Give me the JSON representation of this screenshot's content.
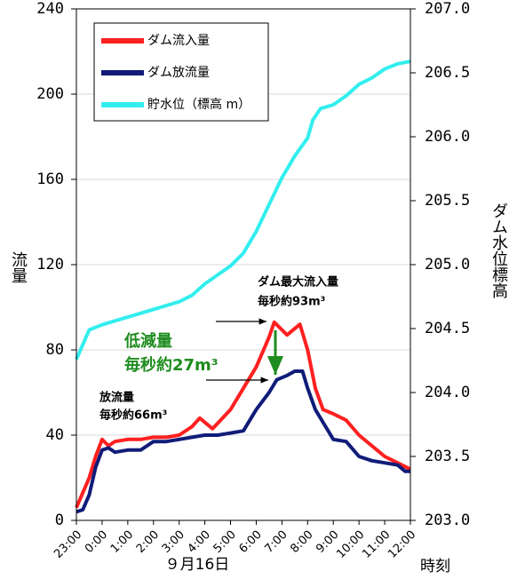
{
  "chart_data": {
    "type": "line",
    "xlim": [
      0,
      13
    ],
    "xticks": [
      {
        "value": 0,
        "label": "23:00"
      },
      {
        "value": 1,
        "label": "0:00"
      },
      {
        "value": 2,
        "label": "1:00"
      },
      {
        "value": 3,
        "label": "2:00"
      },
      {
        "value": 4,
        "label": "3:00"
      },
      {
        "value": 5,
        "label": "4:00"
      },
      {
        "value": 6,
        "label": "5:00"
      },
      {
        "value": 7,
        "label": "6:00"
      },
      {
        "value": 8,
        "label": "7:00"
      },
      {
        "value": 9,
        "label": "8:00"
      },
      {
        "value": 10,
        "label": "9:00"
      },
      {
        "value": 11,
        "label": "10:00"
      },
      {
        "value": 12,
        "label": "11:00"
      },
      {
        "value": 13,
        "label": "12:00"
      }
    ],
    "ylim": [
      0,
      240
    ],
    "yticks": [
      0,
      40,
      80,
      120,
      160,
      200,
      240
    ],
    "y2lim": [
      203,
      207
    ],
    "y2ticks": [
      {
        "value": 203,
        "label": "203.0"
      },
      {
        "value": 203.5,
        "label": "203.5"
      },
      {
        "value": 204,
        "label": "204.0"
      },
      {
        "value": 204.5,
        "label": "204.5"
      },
      {
        "value": 205,
        "label": "205.0"
      },
      {
        "value": 205.5,
        "label": "205.5"
      },
      {
        "value": 206,
        "label": "206.0"
      },
      {
        "value": 206.5,
        "label": "206.5"
      },
      {
        "value": 207,
        "label": "207.0"
      }
    ],
    "ylabel": "流量",
    "y2label": "ダム水位標高",
    "xlabel": "９月16日",
    "xlabel2": "時刻",
    "grid": true,
    "legend": "upper left",
    "series": [
      {
        "name": "ダム流入量",
        "color": "#ff2020",
        "x": [
          0,
          0.25,
          0.5,
          0.75,
          1,
          1.25,
          1.5,
          2,
          2.5,
          3,
          3.5,
          4,
          4.5,
          4.8,
          5.3,
          6,
          6.5,
          7,
          7.5,
          7.7,
          8.2,
          8.7,
          9,
          9.3,
          9.6,
          10,
          10.5,
          11,
          11.5,
          12,
          12.5,
          13
        ],
        "values": [
          6,
          13,
          20,
          30,
          38,
          35,
          37,
          38,
          38,
          39,
          39,
          40,
          44,
          48,
          43,
          52,
          62,
          72,
          86,
          93,
          87,
          92,
          80,
          62,
          52,
          50,
          47,
          40,
          35,
          30,
          27,
          24
        ]
      },
      {
        "name": "ダム放流量",
        "color": "#101c78",
        "x": [
          0,
          0.25,
          0.5,
          0.75,
          1,
          1.25,
          1.5,
          2,
          2.5,
          3,
          3.5,
          4,
          4.5,
          5,
          5.5,
          6,
          6.5,
          7,
          7.5,
          7.8,
          8.2,
          8.5,
          8.8,
          9,
          9.3,
          9.6,
          10,
          10.5,
          11,
          11.5,
          12,
          12.5,
          12.8,
          13
        ],
        "values": [
          4,
          5,
          12,
          25,
          33,
          34,
          32,
          33,
          33,
          37,
          37,
          38,
          39,
          40,
          40,
          41,
          42,
          52,
          60,
          66,
          68,
          70,
          70,
          62,
          52,
          46,
          38,
          37,
          30,
          28,
          27,
          26,
          23,
          23
        ]
      },
      {
        "name": "貯水位（標高 m）",
        "color": "#33eeee",
        "axis": "y2",
        "x": [
          0,
          0.5,
          1,
          2,
          3,
          4,
          4.5,
          5,
          5.5,
          6,
          6.5,
          7,
          7.5,
          8,
          8.5,
          9,
          9.2,
          9.5,
          10,
          10.5,
          11,
          11.5,
          12,
          12.5,
          13
        ],
        "values": [
          204.26,
          204.49,
          204.53,
          204.59,
          204.65,
          204.71,
          204.76,
          204.85,
          204.92,
          204.99,
          205.09,
          205.26,
          205.47,
          205.68,
          205.85,
          205.99,
          206.13,
          206.22,
          206.25,
          206.32,
          206.41,
          206.46,
          206.53,
          206.57,
          206.59
        ]
      }
    ],
    "annotations": [
      "ダム最大流入量",
      "毎秒約93m³",
      "低減量",
      "毎秒約27m³",
      "放流量",
      "毎秒約66m³"
    ]
  }
}
